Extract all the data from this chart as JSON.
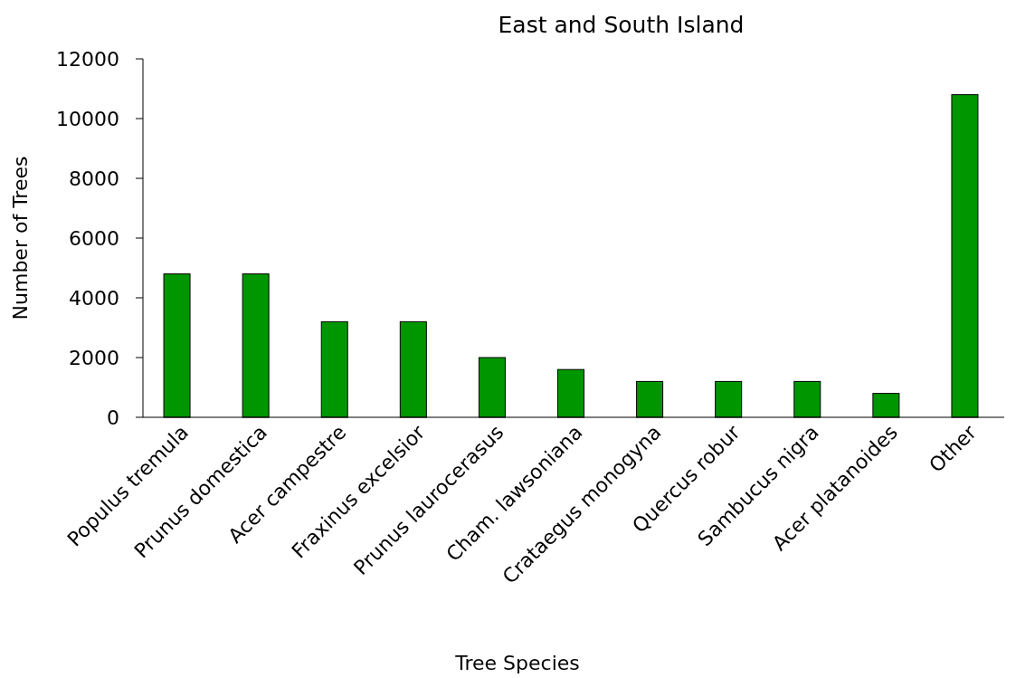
{
  "chart_data": {
    "type": "bar",
    "title": "East and South Island",
    "xlabel": "Tree Species",
    "ylabel": "Number of Trees",
    "categories": [
      "Populus tremula",
      "Prunus domestica",
      "Acer campestre",
      "Fraxinus excelsior",
      "Prunus laurocerasus",
      "Cham. lawsoniana",
      "Crataegus monogyna",
      "Quercus robur",
      "Sambucus nigra",
      "Acer platanoides",
      "Other"
    ],
    "values": [
      4800,
      4800,
      3200,
      3200,
      2000,
      1600,
      1200,
      1200,
      1200,
      800,
      10800
    ],
    "color": "#009600",
    "ylim": [
      0,
      12000
    ],
    "yticks": [
      0,
      2000,
      4000,
      6000,
      8000,
      10000,
      12000
    ],
    "grid": false
  }
}
